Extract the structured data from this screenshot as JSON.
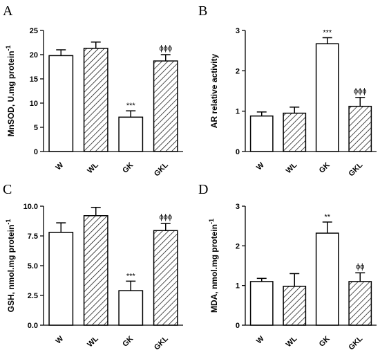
{
  "colors": {
    "bar_fill": "#ffffff",
    "bar_stroke": "#000000",
    "hatch": "#000000"
  },
  "chart_data": [
    {
      "type": "bar",
      "panel": "A",
      "ylabel": "MnSOD, U.mg protein",
      "ylabel_sup": "-1",
      "categories": [
        "W",
        "WL",
        "GK",
        "GKL"
      ],
      "fills": [
        "plain",
        "hatched",
        "plain",
        "hatched"
      ],
      "values": [
        19.8,
        21.3,
        7.1,
        18.7
      ],
      "errors": [
        1.2,
        1.3,
        1.3,
        1.3
      ],
      "annotations": [
        "",
        "",
        "***",
        "ϕϕϕ"
      ],
      "ylim": [
        0,
        25
      ],
      "yticks": [
        0,
        5,
        10,
        15,
        20,
        25
      ],
      "ytick_labels": [
        "0",
        "5",
        "10",
        "15",
        "20",
        "25"
      ]
    },
    {
      "type": "bar",
      "panel": "B",
      "ylabel": "AR relative activity",
      "ylabel_sup": "",
      "categories": [
        "W",
        "WL",
        "GK",
        "GKL"
      ],
      "fills": [
        "plain",
        "hatched",
        "plain",
        "hatched"
      ],
      "values": [
        0.88,
        0.95,
        2.67,
        1.12
      ],
      "errors": [
        0.1,
        0.15,
        0.15,
        0.22
      ],
      "annotations": [
        "",
        "",
        "***",
        "ϕϕϕ"
      ],
      "ylim": [
        0,
        3
      ],
      "yticks": [
        0,
        1,
        2,
        3
      ],
      "ytick_labels": [
        "0",
        "1",
        "2",
        "3"
      ]
    },
    {
      "type": "bar",
      "panel": "C",
      "ylabel": "GSH, nmol.mg protein",
      "ylabel_sup": "-1",
      "categories": [
        "W",
        "WL",
        "GK",
        "GKL"
      ],
      "fills": [
        "plain",
        "hatched",
        "plain",
        "hatched"
      ],
      "values": [
        7.8,
        9.2,
        2.9,
        7.95
      ],
      "errors": [
        0.8,
        0.7,
        0.8,
        0.6
      ],
      "annotations": [
        "",
        "",
        "***",
        "ϕϕϕ"
      ],
      "ylim": [
        0,
        10
      ],
      "yticks": [
        0,
        2.5,
        5,
        7.5,
        10
      ],
      "ytick_labels": [
        "0.0",
        "2.5",
        "5.0",
        "7.5",
        "10.0"
      ]
    },
    {
      "type": "bar",
      "panel": "D",
      "ylabel": "MDA, nmol.mg protein",
      "ylabel_sup": "-1",
      "categories": [
        "W",
        "WL",
        "GK",
        "GKL"
      ],
      "fills": [
        "plain",
        "hatched",
        "plain",
        "hatched"
      ],
      "values": [
        1.1,
        0.98,
        2.32,
        1.1
      ],
      "errors": [
        0.08,
        0.32,
        0.28,
        0.22
      ],
      "annotations": [
        "",
        "",
        "**",
        "ϕϕ"
      ],
      "ylim": [
        0,
        3
      ],
      "yticks": [
        0,
        1,
        2,
        3
      ],
      "ytick_labels": [
        "0",
        "1",
        "2",
        "3"
      ]
    }
  ]
}
